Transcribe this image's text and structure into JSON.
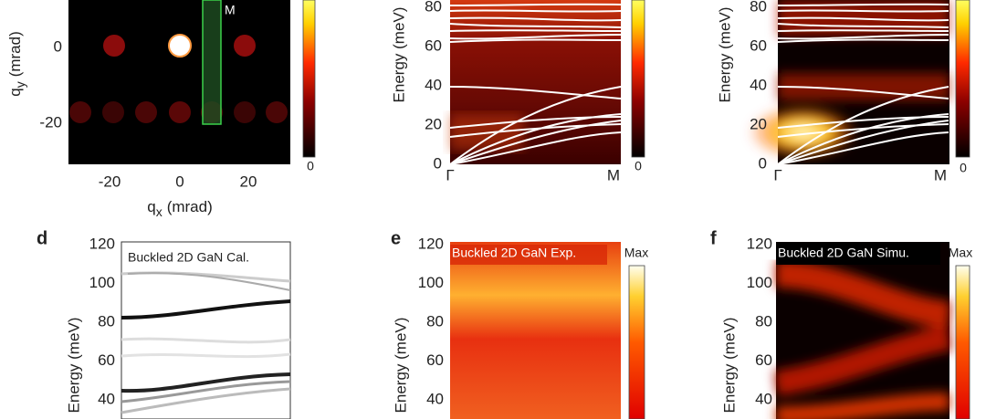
{
  "panel_a": {
    "marker_label": "M",
    "colorbar_min": 0,
    "y_label": {
      "symbol": "q",
      "sub": "y",
      "unit": "(mrad)"
    },
    "yticks": [
      0,
      -20
    ],
    "xticks": [
      -20,
      0,
      20
    ],
    "x_label": {
      "symbol": "q",
      "sub": "x",
      "unit": "(mrad)"
    }
  },
  "panel_b": {
    "y_label": "Energy (meV)",
    "yticks": [
      80,
      60,
      40,
      20,
      0
    ],
    "xticks": [
      "Γ",
      "M"
    ],
    "colorbar_min": 0
  },
  "panel_c": {
    "y_label": "Energy (meV)",
    "yticks": [
      80,
      60,
      40,
      20,
      0
    ],
    "xticks": [
      "Γ",
      "M"
    ],
    "colorbar_min": 0
  },
  "panel_d": {
    "letter": "d",
    "title": "Buckled 2D GaN Cal.",
    "y_label": "Energy (meV)",
    "yticks": [
      120,
      100,
      80,
      60,
      40
    ]
  },
  "panel_e": {
    "letter": "e",
    "title": "Buckled 2D GaN Exp.",
    "y_label": "Energy (meV)",
    "yticks": [
      120,
      100,
      80,
      60,
      40
    ],
    "colorbar_max": "Max"
  },
  "panel_f": {
    "letter": "f",
    "title": "Buckled 2D GaN Simu.",
    "y_label": "Energy (meV)",
    "yticks": [
      120,
      100,
      80,
      60,
      40
    ],
    "colorbar_max": "Max"
  }
}
